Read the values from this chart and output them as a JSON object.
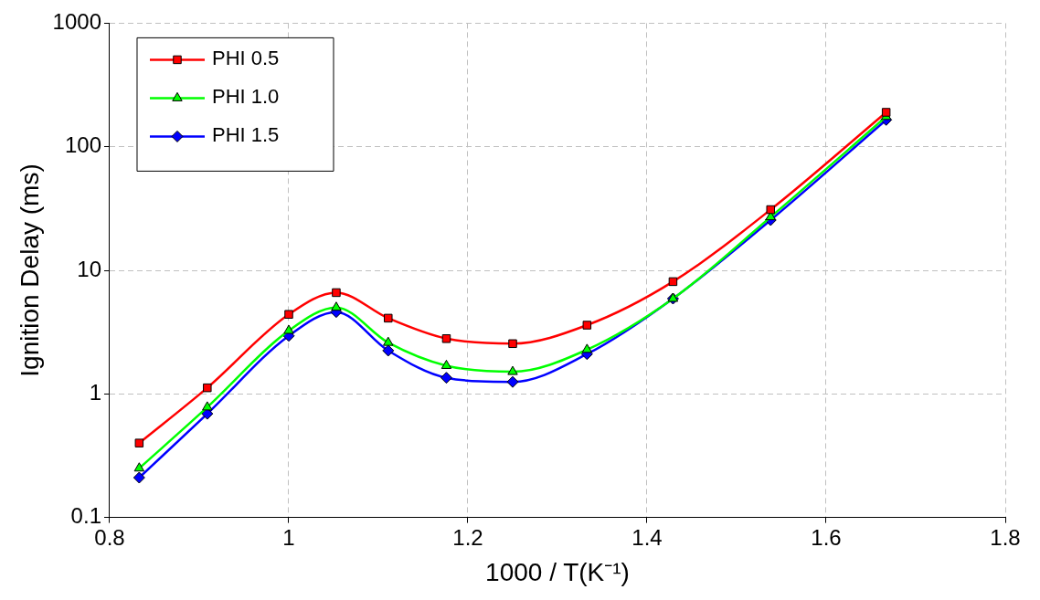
{
  "chart_data": {
    "type": "line",
    "xlabel": "1000 / T(K⁻¹)",
    "ylabel": "Ignition Delay (ms)",
    "log": "y",
    "grid": true,
    "legend": "top left",
    "line_style": "solid",
    "x": [
      0.833,
      0.909,
      1.0,
      1.053,
      1.111,
      1.176,
      1.25,
      1.333,
      1.429,
      1.538,
      1.667
    ],
    "xlim": [
      0.8,
      1.8
    ],
    "xticks": [
      0.8,
      1,
      1.2,
      1.4,
      1.6,
      1.8
    ],
    "ylim": [
      0.1,
      1000
    ],
    "yticks": [
      0.1,
      1,
      10,
      100,
      1000
    ],
    "series": [
      {
        "name": "PHI 0.5",
        "color": "#ff0000",
        "marker": "square",
        "values": [
          0.4,
          1.12,
          4.4,
          6.6,
          4.1,
          2.8,
          2.55,
          3.6,
          8.1,
          31,
          190
        ]
      },
      {
        "name": "PHI 1.0",
        "color": "#00ff00",
        "marker": "triangle",
        "values": [
          0.25,
          0.78,
          3.25,
          5.0,
          2.6,
          1.69,
          1.51,
          2.28,
          5.9,
          27,
          175
        ]
      },
      {
        "name": "PHI 1.5",
        "color": "#0000ff",
        "marker": "diamond",
        "values": [
          0.21,
          0.69,
          2.95,
          4.6,
          2.24,
          1.35,
          1.25,
          2.1,
          5.9,
          25.5,
          165
        ]
      }
    ]
  }
}
